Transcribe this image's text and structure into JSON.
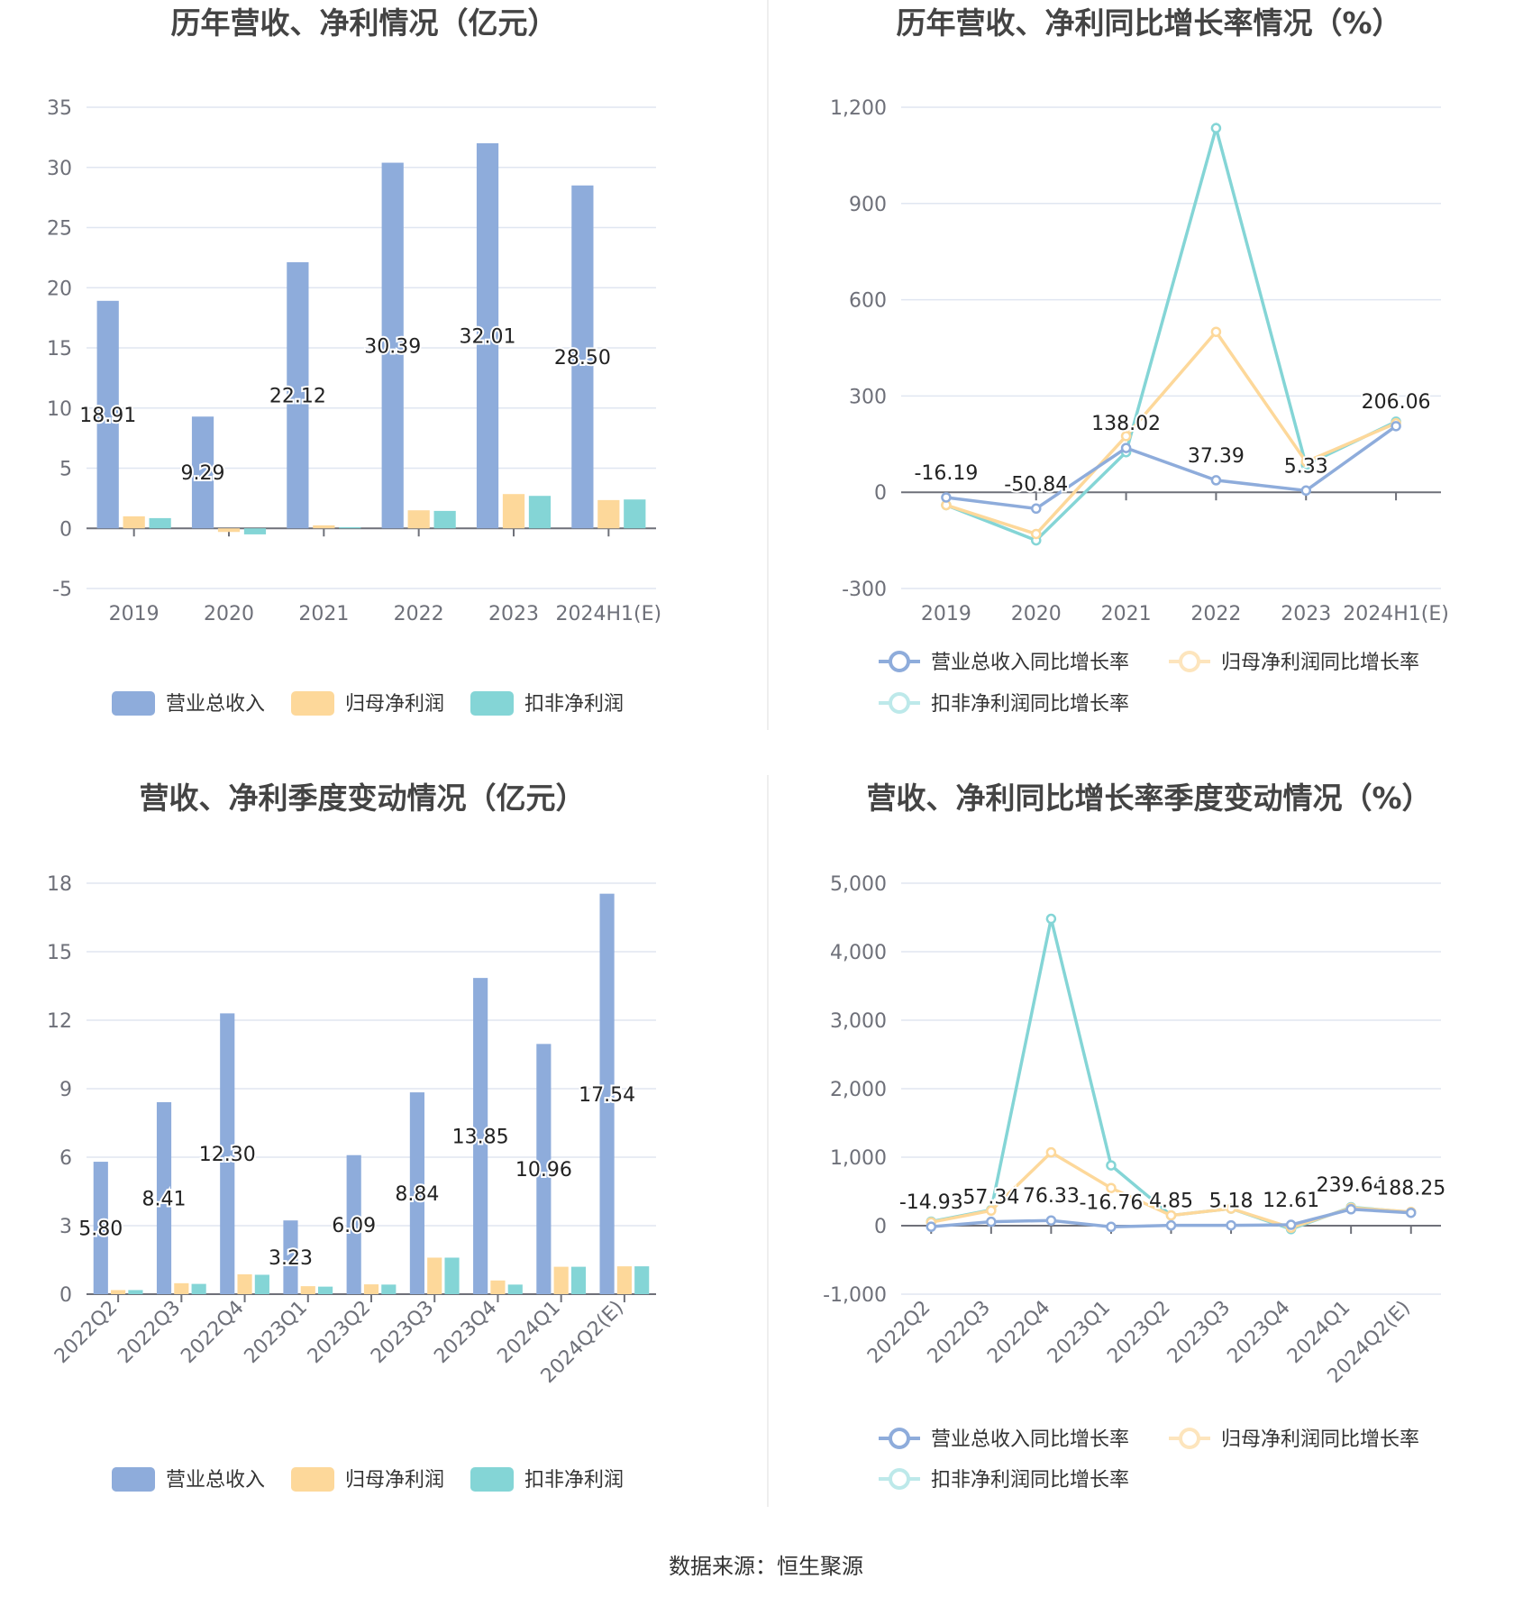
{
  "source": "数据来源：恒生聚源",
  "colors": {
    "revenue": "#8eacdb",
    "net_profit": "#fdd89a",
    "deducted_profit": "#84d5d6"
  },
  "chart_data": [
    {
      "type": "bar",
      "title": "历年营收、净利情况（亿元）",
      "categories": [
        "2019",
        "2020",
        "2021",
        "2022",
        "2023",
        "2024H1(E)"
      ],
      "ylim": [
        -5,
        35
      ],
      "yticks": [
        -5,
        0,
        5,
        10,
        15,
        20,
        25,
        30,
        35
      ],
      "legend_position": "bottom",
      "series": [
        {
          "name": "营业总收入",
          "values": [
            18.91,
            9.29,
            22.12,
            30.39,
            32.01,
            28.5
          ],
          "labels": [
            "18.91",
            "9.29",
            "22.12",
            "30.39",
            "32.01",
            "28.50"
          ]
        },
        {
          "name": "归母净利润",
          "values": [
            1.0,
            -0.3,
            0.25,
            1.5,
            2.85,
            2.35
          ]
        },
        {
          "name": "扣非净利润",
          "values": [
            0.85,
            -0.5,
            0.1,
            1.45,
            2.7,
            2.4
          ]
        }
      ]
    },
    {
      "type": "line",
      "title": "历年营收、净利同比增长率情况（%）",
      "categories": [
        "2019",
        "2020",
        "2021",
        "2022",
        "2023",
        "2024H1(E)"
      ],
      "ylim": [
        -300,
        1200
      ],
      "yticks": [
        -300,
        0,
        300,
        600,
        900,
        1200
      ],
      "legend_position": "bottom",
      "series": [
        {
          "name": "营业总收入同比增长率",
          "values": [
            -16.19,
            -50.84,
            138.02,
            37.39,
            5.33,
            206.06
          ],
          "labels": [
            "-16.19",
            "-50.84",
            "138.02",
            "37.39",
            "5.33",
            "206.06"
          ]
        },
        {
          "name": "归母净利润同比增长率",
          "values": [
            -40,
            -130,
            175,
            500,
            95,
            215
          ]
        },
        {
          "name": "扣非净利润同比增长率",
          "values": [
            -40,
            -150,
            125,
            1135,
            85,
            220
          ]
        }
      ]
    },
    {
      "type": "bar",
      "title": "营收、净利季度变动情况（亿元）",
      "categories": [
        "2022Q2",
        "2022Q3",
        "2022Q4",
        "2023Q1",
        "2023Q2",
        "2023Q3",
        "2023Q4",
        "2024Q1",
        "2024Q2(E)"
      ],
      "ylim": [
        0,
        18
      ],
      "yticks": [
        0,
        3,
        6,
        9,
        12,
        15,
        18
      ],
      "legend_position": "bottom",
      "series": [
        {
          "name": "营业总收入",
          "values": [
            5.8,
            8.41,
            12.3,
            3.23,
            6.09,
            8.84,
            13.85,
            10.96,
            17.54
          ],
          "labels": [
            "5.80",
            "8.41",
            "12.30",
            "3.23",
            "6.09",
            "8.84",
            "13.85",
            "10.96",
            "17.54"
          ]
        },
        {
          "name": "归母净利润",
          "values": [
            0.18,
            0.48,
            0.87,
            0.35,
            0.43,
            1.6,
            0.6,
            1.2,
            1.22
          ]
        },
        {
          "name": "扣非净利润",
          "values": [
            0.18,
            0.45,
            0.85,
            0.33,
            0.42,
            1.6,
            0.42,
            1.2,
            1.22
          ]
        }
      ]
    },
    {
      "type": "line",
      "title": "营收、净利同比增长率季度变动情况（%）",
      "categories": [
        "2022Q2",
        "2022Q3",
        "2022Q4",
        "2023Q1",
        "2023Q2",
        "2023Q3",
        "2023Q4",
        "2024Q1",
        "2024Q2(E)"
      ],
      "ylim": [
        -1000,
        5000
      ],
      "yticks": [
        -1000,
        0,
        1000,
        2000,
        3000,
        4000,
        5000
      ],
      "legend_position": "bottom",
      "series": [
        {
          "name": "营业总收入同比增长率",
          "values": [
            -14.93,
            57.34,
            76.33,
            -16.76,
            4.85,
            5.18,
            12.61,
            239.64,
            188.25
          ],
          "labels": [
            "-14.93",
            "57.34",
            "76.33",
            "-16.76",
            "4.85",
            "5.18",
            "12.61",
            "239.64",
            "188.25"
          ]
        },
        {
          "name": "归母净利润同比增长率",
          "values": [
            50,
            220,
            1070,
            550,
            150,
            250,
            -30,
            260,
            200
          ]
        },
        {
          "name": "扣非净利润同比增长率",
          "values": [
            60,
            230,
            4480,
            880,
            150,
            250,
            -50,
            270,
            195
          ]
        }
      ]
    }
  ]
}
